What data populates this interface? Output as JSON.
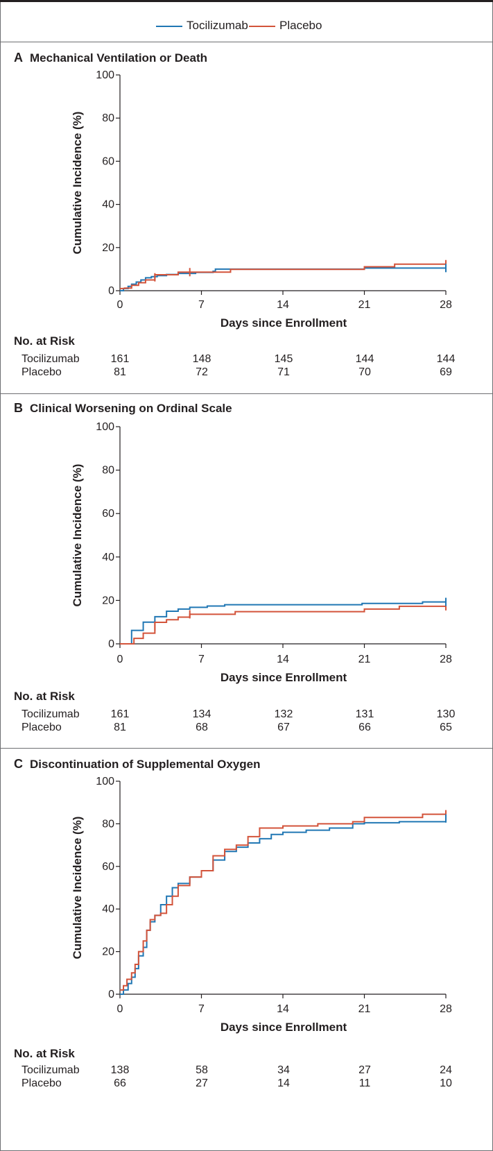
{
  "legend": [
    {
      "name": "Tocilizumab",
      "color": "#2077b4"
    },
    {
      "name": "Placebo",
      "color": "#d3533a"
    }
  ],
  "chart_data": [
    {
      "type": "line",
      "letter": "A",
      "title": "Mechanical Ventilation or Death",
      "xlabel": "Days since Enrollment",
      "ylabel": "Cumulative Incidence (%)",
      "xlim": [
        0,
        28
      ],
      "ylim": [
        0,
        100
      ],
      "xticks": [
        "0",
        "7",
        "14",
        "21",
        "28"
      ],
      "yticks": [
        "0",
        "20",
        "40",
        "60",
        "80",
        "100"
      ],
      "series": [
        {
          "name": "Tocilizumab",
          "x": [
            0,
            0.3,
            0.7,
            1,
            1.4,
            1.8,
            2.2,
            2.7,
            3.2,
            4,
            5,
            6.5,
            8,
            8.2,
            21,
            28
          ],
          "y": [
            0,
            1,
            2,
            3,
            4,
            5,
            6,
            6.5,
            7,
            7.5,
            8,
            8.5,
            9,
            10,
            10.5,
            10.5
          ]
        },
        {
          "name": "Placebo",
          "x": [
            0,
            0.4,
            1,
            1.6,
            2.2,
            3,
            5,
            6,
            9.5,
            21,
            23.6,
            28
          ],
          "y": [
            1,
            1.2,
            2.5,
            3.7,
            5,
            7.4,
            8.6,
            8.6,
            9.9,
            11.1,
            12.3,
            12.3
          ]
        }
      ],
      "censor_marks": [
        {
          "series": "Placebo",
          "x": [
            3,
            6,
            28
          ],
          "y": [
            6.2,
            8.6,
            12.3
          ]
        },
        {
          "series": "Tocilizumab",
          "x": [
            28
          ],
          "y": [
            10.5
          ]
        }
      ],
      "risk": {
        "title": "No. at Risk",
        "days": [
          0,
          7,
          14,
          21,
          28
        ],
        "rows": [
          {
            "label": "Tocilizumab",
            "values": [
              "161",
              "148",
              "145",
              "144",
              "144"
            ]
          },
          {
            "label": "Placebo",
            "values": [
              "81",
              "72",
              "71",
              "70",
              "69"
            ]
          }
        ]
      }
    },
    {
      "type": "line",
      "letter": "B",
      "title": "Clinical Worsening on Ordinal Scale",
      "xlabel": "Days since Enrollment",
      "ylabel": "Cumulative Incidence (%)",
      "xlim": [
        0,
        28
      ],
      "ylim": [
        0,
        100
      ],
      "xticks": [
        "0",
        "7",
        "14",
        "21",
        "28"
      ],
      "yticks": [
        "0",
        "20",
        "40",
        "60",
        "80",
        "100"
      ],
      "series": [
        {
          "name": "Tocilizumab",
          "x": [
            0,
            1,
            2,
            3,
            4,
            5,
            6,
            7.5,
            9,
            20.8,
            26,
            28
          ],
          "y": [
            0,
            6.2,
            10,
            12.5,
            15,
            16,
            16.8,
            17.4,
            18,
            18.6,
            19.3,
            19.3
          ]
        },
        {
          "name": "Placebo",
          "x": [
            0,
            1.2,
            2,
            3,
            4,
            5,
            6,
            9.9,
            21,
            24,
            28
          ],
          "y": [
            0,
            2.5,
            4.9,
            9.9,
            11.1,
            12.3,
            13.6,
            14.8,
            16,
            17.3,
            17.3
          ]
        }
      ],
      "censor_marks": [
        {
          "series": "Placebo",
          "x": [
            3,
            6,
            28
          ],
          "y": [
            8,
            13.6,
            17.3
          ]
        },
        {
          "series": "Tocilizumab",
          "x": [
            28
          ],
          "y": [
            19.3
          ]
        }
      ],
      "risk": {
        "title": "No. at Risk",
        "days": [
          0,
          7,
          14,
          21,
          28
        ],
        "rows": [
          {
            "label": "Tocilizumab",
            "values": [
              "161",
              "134",
              "132",
              "131",
              "130"
            ]
          },
          {
            "label": "Placebo",
            "values": [
              "81",
              "68",
              "67",
              "66",
              "65"
            ]
          }
        ]
      }
    },
    {
      "type": "line",
      "letter": "C",
      "title": "Discontinuation of Supplemental Oxygen",
      "xlabel": "Days since Enrollment",
      "ylabel": "Cumulative Incidence (%)",
      "xlim": [
        0,
        28
      ],
      "ylim": [
        0,
        100
      ],
      "xticks": [
        "0",
        "7",
        "14",
        "21",
        "28"
      ],
      "yticks": [
        "0",
        "20",
        "40",
        "60",
        "80",
        "100"
      ],
      "series": [
        {
          "name": "Tocilizumab",
          "x": [
            0,
            0.3,
            0.7,
            1,
            1.3,
            1.6,
            2,
            2.3,
            2.6,
            3,
            3.5,
            4,
            4.5,
            5,
            6,
            7,
            8,
            9,
            10,
            11,
            12,
            13,
            14,
            16,
            18,
            20,
            21,
            24,
            28
          ],
          "y": [
            0,
            2,
            5,
            8,
            12,
            18,
            22,
            30,
            34,
            37,
            42,
            46,
            50,
            52,
            55,
            58,
            63,
            67,
            69,
            71,
            73,
            75,
            76,
            77,
            78,
            80,
            80.5,
            81,
            82.5
          ]
        },
        {
          "name": "Placebo",
          "x": [
            0,
            0.3,
            0.6,
            1,
            1.3,
            1.6,
            2,
            2.3,
            2.6,
            3,
            3.5,
            4,
            4.5,
            5,
            6,
            7,
            8,
            9,
            10,
            11,
            12,
            14,
            17,
            20,
            21,
            24,
            26,
            28
          ],
          "y": [
            2,
            4,
            7,
            10,
            14,
            20,
            25,
            30,
            35,
            37,
            38,
            42,
            46,
            51,
            55,
            58,
            65,
            68,
            70,
            74,
            78,
            79,
            80,
            81,
            83,
            83,
            84.5,
            84.5
          ]
        }
      ],
      "censor_marks": [
        {
          "series": "Placebo",
          "x": [
            28
          ],
          "y": [
            84.5
          ]
        },
        {
          "series": "Tocilizumab",
          "x": [
            28
          ],
          "y": [
            82.5
          ]
        }
      ],
      "risk": {
        "title": "No. at Risk",
        "days": [
          0,
          7,
          14,
          21,
          28
        ],
        "rows": [
          {
            "label": "Tocilizumab",
            "values": [
              "138",
              "58",
              "34",
              "27",
              "24"
            ]
          },
          {
            "label": "Placebo",
            "values": [
              "66",
              "27",
              "14",
              "11",
              "10"
            ]
          }
        ]
      }
    }
  ]
}
